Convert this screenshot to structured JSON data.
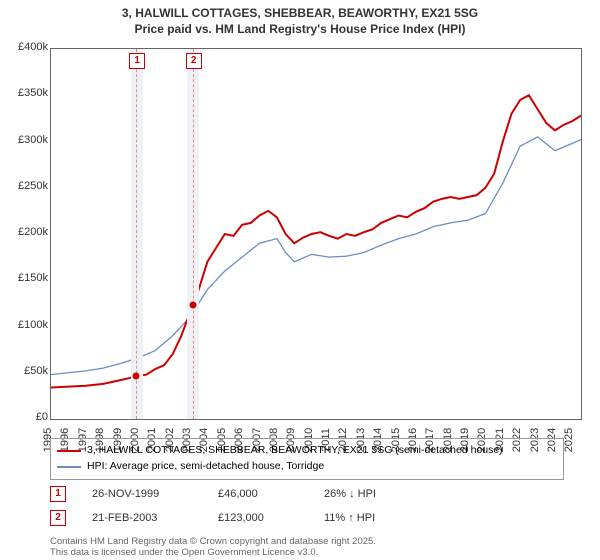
{
  "title_line1": "3, HALWILL COTTAGES, SHEBBEAR, BEAWORTHY, EX21 5SG",
  "title_line2": "Price paid vs. HM Land Registry's House Price Index (HPI)",
  "chart": {
    "type": "line",
    "background_color": "#ffffff",
    "border_color": "#666666",
    "xlim": [
      1995,
      2025.5
    ],
    "ylim": [
      0,
      400000
    ],
    "ytick_step": 50000,
    "yticks": [
      "£0",
      "£50k",
      "£100k",
      "£150k",
      "£200k",
      "£250k",
      "£300k",
      "£350k",
      "£400k"
    ],
    "xticks": [
      1995,
      1996,
      1997,
      1998,
      1999,
      2000,
      2001,
      2002,
      2003,
      2004,
      2005,
      2006,
      2007,
      2008,
      2009,
      2010,
      2011,
      2012,
      2013,
      2014,
      2015,
      2016,
      2017,
      2018,
      2019,
      2020,
      2021,
      2022,
      2023,
      2024,
      2025
    ],
    "band1": {
      "start": 1999.6,
      "end": 2000.3,
      "color": "#eef2f6"
    },
    "band2": {
      "start": 2002.8,
      "end": 2003.5,
      "color": "#eef2f6"
    },
    "vline1_x": 1999.9,
    "vline2_x": 2003.15,
    "vline_color": "#e88",
    "series_property": {
      "color": "#cc0000",
      "width": 2,
      "x": [
        1995,
        1996,
        1997,
        1998,
        1999,
        1999.9,
        2000.5,
        2001,
        2001.5,
        2002,
        2002.5,
        2003,
        2003.15,
        2003.5,
        2004,
        2004.5,
        2005,
        2005.5,
        2006,
        2006.5,
        2007,
        2007.5,
        2008,
        2008.5,
        2009,
        2009.5,
        2010,
        2010.5,
        2011,
        2011.5,
        2012,
        2012.5,
        2013,
        2013.5,
        2014,
        2014.5,
        2015,
        2015.5,
        2016,
        2016.5,
        2017,
        2017.5,
        2018,
        2018.5,
        2019,
        2019.5,
        2020,
        2020.5,
        2021,
        2021.5,
        2022,
        2022.5,
        2023,
        2023.5,
        2024,
        2024.5,
        2025,
        2025.5
      ],
      "y": [
        34000,
        35000,
        36000,
        38000,
        42000,
        46000,
        48000,
        54000,
        58000,
        70000,
        90000,
        115000,
        123000,
        140000,
        170000,
        185000,
        200000,
        198000,
        210000,
        212000,
        220000,
        225000,
        218000,
        200000,
        190000,
        196000,
        200000,
        202000,
        198000,
        195000,
        200000,
        198000,
        202000,
        205000,
        212000,
        216000,
        220000,
        218000,
        224000,
        228000,
        235000,
        238000,
        240000,
        238000,
        240000,
        242000,
        250000,
        265000,
        300000,
        330000,
        345000,
        350000,
        335000,
        320000,
        312000,
        318000,
        322000,
        328000
      ]
    },
    "series_hpi": {
      "color": "#6b8fbf",
      "width": 1.3,
      "x": [
        1995,
        1996,
        1997,
        1998,
        1999,
        2000,
        2001,
        2002,
        2003,
        2004,
        2005,
        2006,
        2007,
        2008,
        2008.5,
        2009,
        2010,
        2011,
        2012,
        2013,
        2014,
        2015,
        2016,
        2017,
        2018,
        2019,
        2020,
        2021,
        2022,
        2023,
        2024,
        2025,
        2025.5
      ],
      "y": [
        48000,
        50000,
        52000,
        55000,
        60000,
        66000,
        74000,
        90000,
        110000,
        140000,
        160000,
        175000,
        190000,
        195000,
        180000,
        170000,
        178000,
        175000,
        176000,
        180000,
        188000,
        195000,
        200000,
        208000,
        212000,
        215000,
        222000,
        255000,
        295000,
        305000,
        290000,
        298000,
        302000
      ]
    },
    "sale_markers": [
      {
        "x": 1999.9,
        "y": 46000,
        "color": "#cc0000"
      },
      {
        "x": 2003.15,
        "y": 123000,
        "color": "#cc0000"
      }
    ],
    "marker_boxes": [
      {
        "n": "1",
        "x": 1999.9,
        "color": "#cc0000"
      },
      {
        "n": "2",
        "x": 2003.15,
        "color": "#cc0000"
      }
    ]
  },
  "legend": {
    "line1": {
      "color": "#cc0000",
      "label": "3, HALWILL COTTAGES, SHEBBEAR, BEAWORTHY, EX21 5SG (semi-detached house)"
    },
    "line2": {
      "color": "#6b8fbf",
      "label": "HPI: Average price, semi-detached house, Torridge"
    }
  },
  "sales": [
    {
      "n": "1",
      "color": "#cc0000",
      "date": "26-NOV-1999",
      "price": "£46,000",
      "hpi": "26% ↓ HPI"
    },
    {
      "n": "2",
      "color": "#cc0000",
      "date": "21-FEB-2003",
      "price": "£123,000",
      "hpi": "11% ↑ HPI"
    }
  ],
  "attribution_line1": "Contains HM Land Registry data © Crown copyright and database right 2025.",
  "attribution_line2": "This data is licensed under the Open Government Licence v3.0."
}
